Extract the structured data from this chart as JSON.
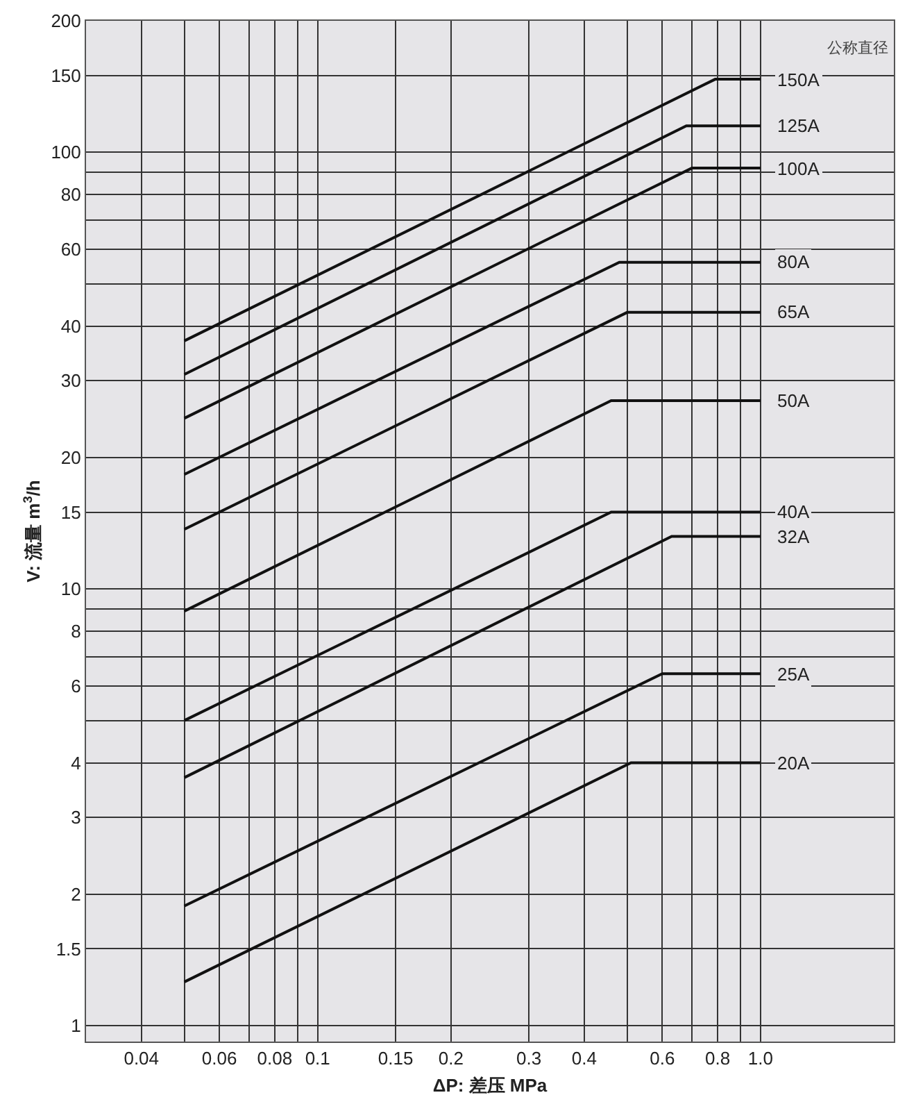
{
  "chart_data": {
    "type": "line",
    "xlabel": "ΔP: 差压 MPa",
    "ylabel": "V: 流量 m$^{3}$/h",
    "annotations": [
      "公称直径"
    ],
    "log": "xy",
    "xlim": [
      0.03,
      2.0
    ],
    "ylim": [
      0.92,
      200
    ],
    "xticks": [
      0.04,
      {
        "value": 0.05,
        "label": null
      },
      0.06,
      {
        "value": 0.07,
        "label": null
      },
      0.08,
      {
        "value": 0.09,
        "label": null
      },
      0.1,
      0.15,
      0.2,
      0.3,
      0.4,
      {
        "value": 0.5,
        "label": null
      },
      0.6,
      {
        "value": 0.7,
        "label": null
      },
      0.8,
      {
        "value": 0.9,
        "label": null
      },
      {
        "value": 1.0,
        "label": "1.0"
      }
    ],
    "yticks": [
      1,
      1.5,
      2,
      3,
      4,
      {
        "value": 5,
        "label": null
      },
      6,
      {
        "value": 7,
        "label": null
      },
      8,
      {
        "value": 9,
        "label": null
      },
      10,
      15,
      20,
      30,
      40,
      {
        "value": 50,
        "label": null
      },
      60,
      {
        "value": 70,
        "label": null
      },
      80,
      {
        "value": 90,
        "label": null
      },
      100,
      150,
      200
    ],
    "grid": true,
    "legend": false,
    "marker": "none",
    "line_style": "solid",
    "series": [
      {
        "name": "150A",
        "color": "#111111",
        "x": [
          0.05,
          0.79,
          1.0
        ],
        "values": [
          37,
          147,
          147
        ]
      },
      {
        "name": "125A",
        "color": "#111111",
        "x": [
          0.05,
          0.68,
          1.0
        ],
        "values": [
          31,
          115,
          115
        ]
      },
      {
        "name": "100A",
        "color": "#111111",
        "x": [
          0.05,
          0.7,
          1.0
        ],
        "values": [
          24.6,
          92,
          92
        ]
      },
      {
        "name": "80A",
        "color": "#111111",
        "x": [
          0.05,
          0.48,
          1.0
        ],
        "values": [
          18.3,
          56,
          56
        ]
      },
      {
        "name": "65A",
        "color": "#111111",
        "x": [
          0.05,
          0.5,
          1.0
        ],
        "values": [
          13.7,
          43,
          43
        ]
      },
      {
        "name": "50A",
        "color": "#111111",
        "x": [
          0.05,
          0.46,
          1.0
        ],
        "values": [
          8.9,
          27,
          27
        ]
      },
      {
        "name": "40A",
        "color": "#111111",
        "x": [
          0.05,
          0.46,
          1.0
        ],
        "values": [
          5.0,
          15,
          15
        ]
      },
      {
        "name": "32A",
        "color": "#111111",
        "x": [
          0.05,
          0.63,
          1.0
        ],
        "values": [
          3.7,
          13.2,
          13.2
        ]
      },
      {
        "name": "25A",
        "color": "#111111",
        "x": [
          0.05,
          0.6,
          1.0
        ],
        "values": [
          1.88,
          6.4,
          6.4
        ]
      },
      {
        "name": "20A",
        "color": "#111111",
        "x": [
          0.05,
          0.51,
          1.0
        ],
        "values": [
          1.26,
          4.0,
          4.0
        ]
      }
    ]
  }
}
